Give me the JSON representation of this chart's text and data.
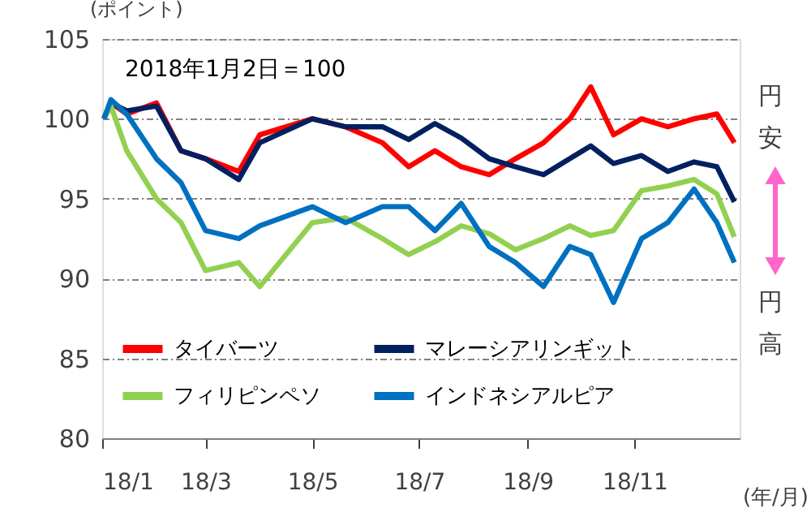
{
  "chart_data": {
    "type": "line",
    "title": "2018年1月2日＝100",
    "ylabel": "(ポイント)",
    "xlabel": "(年/月)",
    "annotations": [
      "円安",
      "円高"
    ],
    "x": [
      "2018-01-02",
      "2018-01-06",
      "2018-01-15",
      "2018-02-01",
      "2018-02-15",
      "2018-03-01",
      "2018-03-20",
      "2018-04-01",
      "2018-05-01",
      "2018-05-20",
      "2018-06-10",
      "2018-06-25",
      "2018-07-10",
      "2018-07-25",
      "2018-08-10",
      "2018-08-25",
      "2018-09-10",
      "2018-09-25",
      "2018-10-07",
      "2018-10-20",
      "2018-11-05",
      "2018-11-20",
      "2018-12-05",
      "2018-12-18",
      "2018-12-28"
    ],
    "series": [
      {
        "name": "タイバーツ",
        "color": "#ff0000",
        "values": [
          100,
          101,
          100.3,
          101,
          98,
          97.5,
          96.7,
          99,
          100,
          99.5,
          98.5,
          97,
          98,
          97,
          96.5,
          97.5,
          98.5,
          100,
          102,
          99,
          100,
          99.5,
          100,
          100.3,
          98.5
        ]
      },
      {
        "name": "マレーシアリンギット",
        "color": "#002060",
        "values": [
          100,
          101,
          100.5,
          100.8,
          98,
          97.5,
          96.2,
          98.5,
          100,
          99.5,
          99.5,
          98.7,
          99.7,
          98.8,
          97.5,
          97,
          96.5,
          97.5,
          98.3,
          97.2,
          97.7,
          96.7,
          97.3,
          97,
          94.8
        ]
      },
      {
        "name": "フィリピンペソ",
        "color": "#92d050",
        "values": [
          100,
          100.8,
          98,
          95,
          93.5,
          90.5,
          91,
          89.5,
          93.5,
          93.8,
          92.5,
          91.5,
          92.3,
          93.3,
          92.8,
          91.8,
          92.5,
          93.3,
          92.7,
          93,
          95.5,
          95.8,
          96.2,
          95.3,
          92.6
        ]
      },
      {
        "name": "インドネシアルピア",
        "color": "#0070c0",
        "values": [
          100,
          101.2,
          100.3,
          97.5,
          96,
          93,
          92.5,
          93.3,
          94.5,
          93.5,
          94.5,
          94.5,
          93,
          94.7,
          92,
          91,
          89.5,
          92,
          91.5,
          88.5,
          92.5,
          93.5,
          95.6,
          93.5,
          91
        ]
      }
    ],
    "xlim": [
      "2018-01-01",
      "2018-12-31"
    ],
    "xticks": [
      {
        "value": "2018-01-01",
        "label": "18/1"
      },
      {
        "value": "2018-03-01",
        "label": "18/3"
      },
      {
        "value": "2018-05-01",
        "label": "18/5"
      },
      {
        "value": "2018-07-01",
        "label": "18/7"
      },
      {
        "value": "2018-09-01",
        "label": "18/9"
      },
      {
        "value": "2018-11-01",
        "label": "18/11"
      }
    ],
    "ylim": [
      80,
      105
    ],
    "yticks": [
      80,
      85,
      90,
      95,
      100,
      105
    ],
    "grid": "y",
    "legend": "bottom",
    "line_style": "solid",
    "marker": "none"
  }
}
